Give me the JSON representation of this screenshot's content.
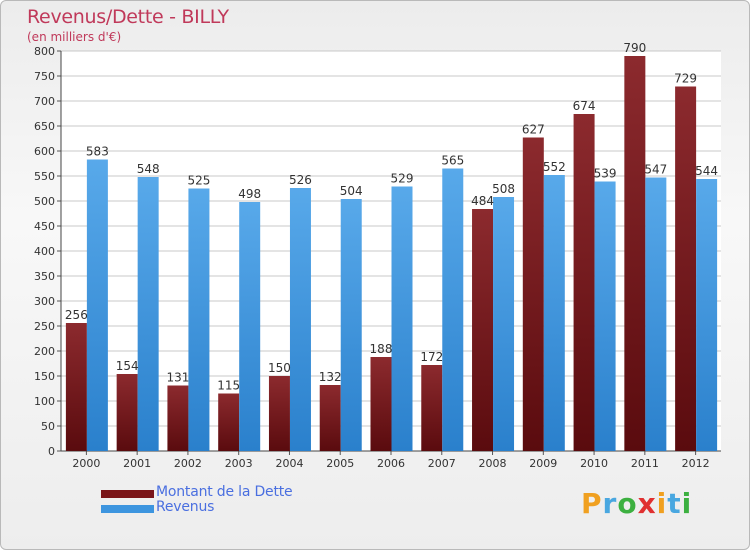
{
  "title": "Revenus/Dette - BILLY",
  "subtitle": "(en milliers d'€)",
  "logo": {
    "letters": [
      "P",
      "r",
      "o",
      "x",
      "i",
      "t",
      "i"
    ],
    "colors": [
      "#f0a020",
      "#49a7e0",
      "#3cb040",
      "#e03030",
      "#f0a020",
      "#49a7e0",
      "#3cb040"
    ]
  },
  "legend": [
    {
      "label": "Montant de la Dette",
      "color": "#7a1518"
    },
    {
      "label": "Revenus",
      "color": "#3d95df"
    }
  ],
  "chart_data": {
    "type": "bar",
    "categories": [
      "2000",
      "2001",
      "2002",
      "2003",
      "2004",
      "2005",
      "2006",
      "2007",
      "2008",
      "2009",
      "2010",
      "2011",
      "2012"
    ],
    "series": [
      {
        "name": "Montant de la Dette",
        "color": "#7a1518",
        "values": [
          256,
          154,
          131,
          115,
          150,
          132,
          188,
          172,
          484,
          627,
          674,
          790,
          729
        ]
      },
      {
        "name": "Revenus",
        "color": "#3d95df",
        "values": [
          583,
          548,
          525,
          498,
          526,
          504,
          529,
          565,
          508,
          552,
          539,
          547,
          544
        ]
      }
    ],
    "ylim": [
      0,
      800
    ],
    "yticks": [
      0,
      50,
      100,
      150,
      200,
      250,
      300,
      350,
      400,
      450,
      500,
      550,
      600,
      650,
      700,
      750,
      800
    ],
    "grid": true,
    "legend_position": "bottom-left"
  }
}
